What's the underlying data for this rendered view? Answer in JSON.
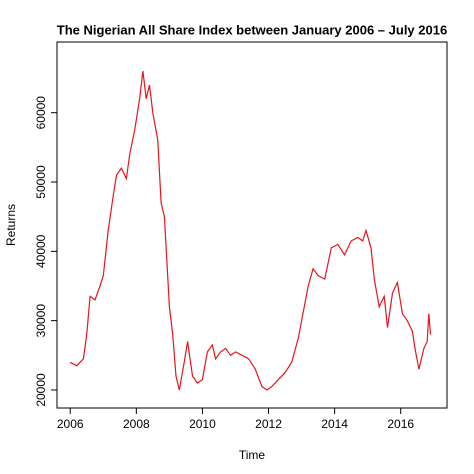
{
  "chart_data": {
    "type": "line",
    "title": "The Nigerian All Share Index between January 2006 – July 2016",
    "x_label": "Time",
    "y_label": "Returns",
    "x": [
      2006.0,
      2006.2,
      2006.4,
      2006.5,
      2006.6,
      2006.75,
      2006.9,
      2007.0,
      2007.15,
      2007.3,
      2007.4,
      2007.55,
      2007.7,
      2007.8,
      2007.95,
      2008.1,
      2008.2,
      2008.3,
      2008.4,
      2008.5,
      2008.65,
      2008.75,
      2008.85,
      2009.0,
      2009.1,
      2009.2,
      2009.3,
      2009.45,
      2009.55,
      2009.7,
      2009.85,
      2010.0,
      2010.15,
      2010.3,
      2010.4,
      2010.55,
      2010.7,
      2010.85,
      2011.0,
      2011.2,
      2011.4,
      2011.6,
      2011.8,
      2011.95,
      2012.1,
      2012.3,
      2012.5,
      2012.7,
      2012.9,
      2013.0,
      2013.2,
      2013.35,
      2013.5,
      2013.7,
      2013.9,
      2014.1,
      2014.3,
      2014.5,
      2014.7,
      2014.85,
      2014.95,
      2015.1,
      2015.2,
      2015.35,
      2015.5,
      2015.6,
      2015.75,
      2015.9,
      2016.05,
      2016.2,
      2016.35,
      2016.45,
      2016.55,
      2016.7,
      2016.8,
      2016.85,
      2016.9
    ],
    "series": [
      {
        "name": "Returns",
        "color": "#e8141c",
        "values": [
          24000,
          23500,
          24500,
          28000,
          33500,
          33000,
          35000,
          36500,
          43000,
          48000,
          51000,
          52000,
          50500,
          54000,
          57500,
          62000,
          66000,
          62000,
          64000,
          60000,
          56000,
          47000,
          45000,
          32000,
          28000,
          22000,
          20000,
          24000,
          27000,
          22000,
          21000,
          21500,
          25500,
          26500,
          24500,
          25500,
          26000,
          25000,
          25500,
          25000,
          24500,
          23000,
          20500,
          20000,
          20500,
          21500,
          22500,
          24000,
          27500,
          30000,
          35000,
          37500,
          36500,
          36000,
          40500,
          41000,
          39500,
          41500,
          42000,
          41500,
          43000,
          40500,
          36000,
          32000,
          33500,
          29000,
          34000,
          35500,
          31000,
          30000,
          28500,
          25500,
          23000,
          26000,
          27000,
          31000,
          28000
        ]
      }
    ],
    "xlim": [
      2005.6,
      2017.4
    ],
    "xticks": [
      2006,
      2008,
      2010,
      2012,
      2014,
      2016
    ],
    "ylim": [
      17400,
      70200
    ],
    "yticks": [
      20000,
      30000,
      40000,
      50000,
      60000
    ]
  }
}
